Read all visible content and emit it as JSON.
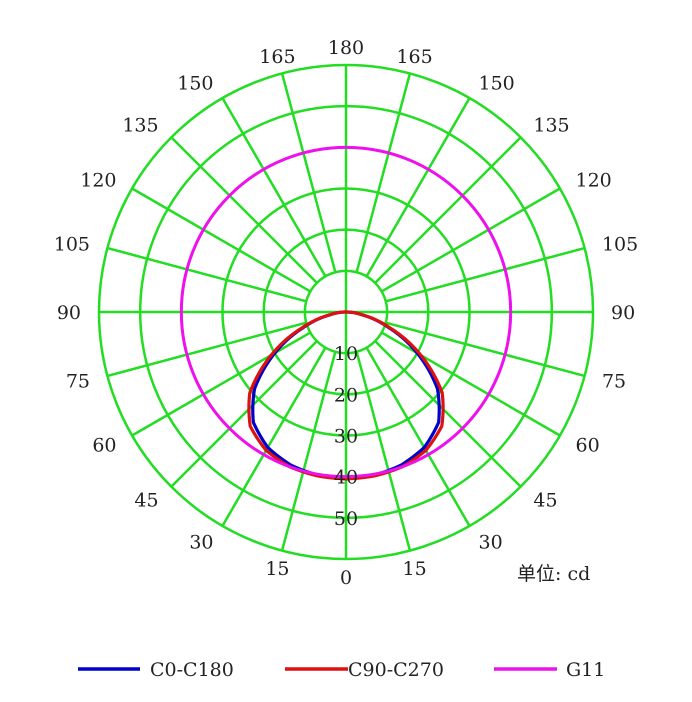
{
  "chart_data": {
    "type": "polar-line",
    "unit_label": "单位: cd",
    "radial_ticks": [
      "10",
      "20",
      "30",
      "40",
      "50"
    ],
    "radial_values": [
      10,
      20,
      30,
      40,
      50
    ],
    "r_max": 60,
    "angle_labels": {
      "right": [
        "0",
        "15",
        "30",
        "45",
        "60",
        "75",
        "90",
        "105",
        "120",
        "135",
        "150",
        "165",
        "180"
      ],
      "left": [
        "15",
        "30",
        "45",
        "60",
        "75",
        "90",
        "105",
        "120",
        "135",
        "150",
        "165"
      ]
    },
    "angles_deg": [
      0,
      15,
      30,
      45,
      60,
      75,
      90,
      105,
      120,
      135,
      150,
      165,
      180
    ],
    "colors": {
      "grid": "#22dd22",
      "c0": "#0000cc",
      "c90": "#dd1111",
      "g11": "#ee11ee"
    },
    "series": [
      {
        "name": "C0-C180",
        "color": "#0000cc",
        "angles": [
          0,
          10,
          20,
          30,
          40,
          50,
          60,
          70,
          80,
          90
        ],
        "values": [
          40.5,
          40.2,
          39.5,
          38.0,
          35.0,
          29.0,
          20.0,
          11.0,
          4.0,
          0
        ]
      },
      {
        "name": "C90-C270",
        "color": "#dd1111",
        "angles": [
          0,
          10,
          20,
          30,
          40,
          50,
          60,
          70,
          80,
          90
        ],
        "values": [
          40.5,
          40.4,
          40.0,
          38.8,
          36.2,
          30.5,
          21.0,
          11.5,
          4.0,
          0
        ]
      },
      {
        "name": "G11",
        "color": "#ee11ee",
        "angles": [
          0,
          180
        ],
        "values": [
          40,
          40
        ]
      }
    ],
    "legend": [
      {
        "label": "C0-C180",
        "color": "#0000cc"
      },
      {
        "label": "C90-C270",
        "color": "#dd1111"
      },
      {
        "label": "G11",
        "color": "#ee11ee"
      }
    ]
  }
}
